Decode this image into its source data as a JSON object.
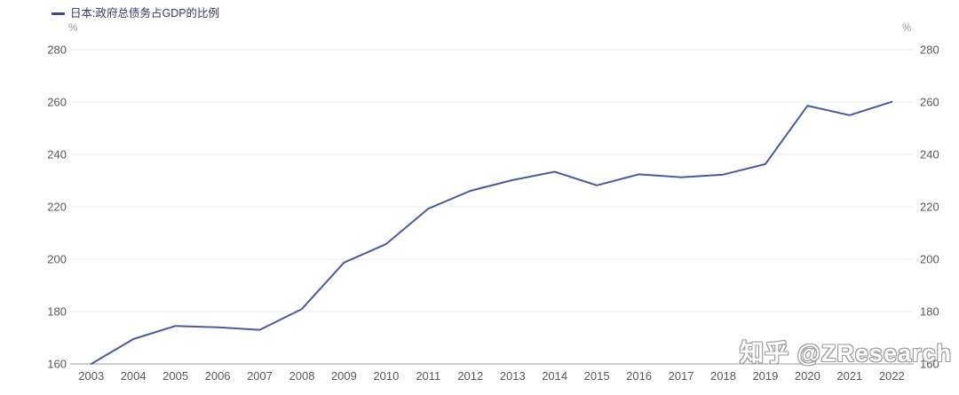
{
  "legend": {
    "label": "日本:政府总债务占GDP的比例"
  },
  "units": {
    "left": "%",
    "right": "%"
  },
  "watermark": "知乎 @ZResearch",
  "colors": {
    "line": "#4c5a9b",
    "legend_swatch": "#3c4b85",
    "legend_text": "#333c64",
    "axis_label": "#595959",
    "grid": "#ebedf2",
    "axis_line": "#999999",
    "unit": "#999aa3",
    "watermark_outline": "#9b9b9b"
  },
  "chart_data": {
    "type": "line",
    "title": "日本:政府总债务占GDP的比例",
    "ylabel": "%",
    "ylim": [
      160,
      280
    ],
    "y_ticks": [
      160,
      180,
      200,
      220,
      240,
      260,
      280
    ],
    "grid": true,
    "legend_position": "top-left",
    "x": [
      2003,
      2004,
      2005,
      2006,
      2007,
      2008,
      2009,
      2010,
      2011,
      2012,
      2013,
      2014,
      2015,
      2016,
      2017,
      2018,
      2019,
      2020,
      2021,
      2022
    ],
    "series": [
      {
        "name": "日本:政府总债务占GDP的比例",
        "values": [
          160.0,
          169.5,
          174.5,
          174.0,
          173.0,
          181.0,
          198.7,
          205.8,
          219.3,
          226.1,
          230.2,
          233.4,
          228.2,
          232.4,
          231.3,
          232.3,
          236.3,
          258.6,
          255.0,
          260.1
        ]
      }
    ]
  }
}
